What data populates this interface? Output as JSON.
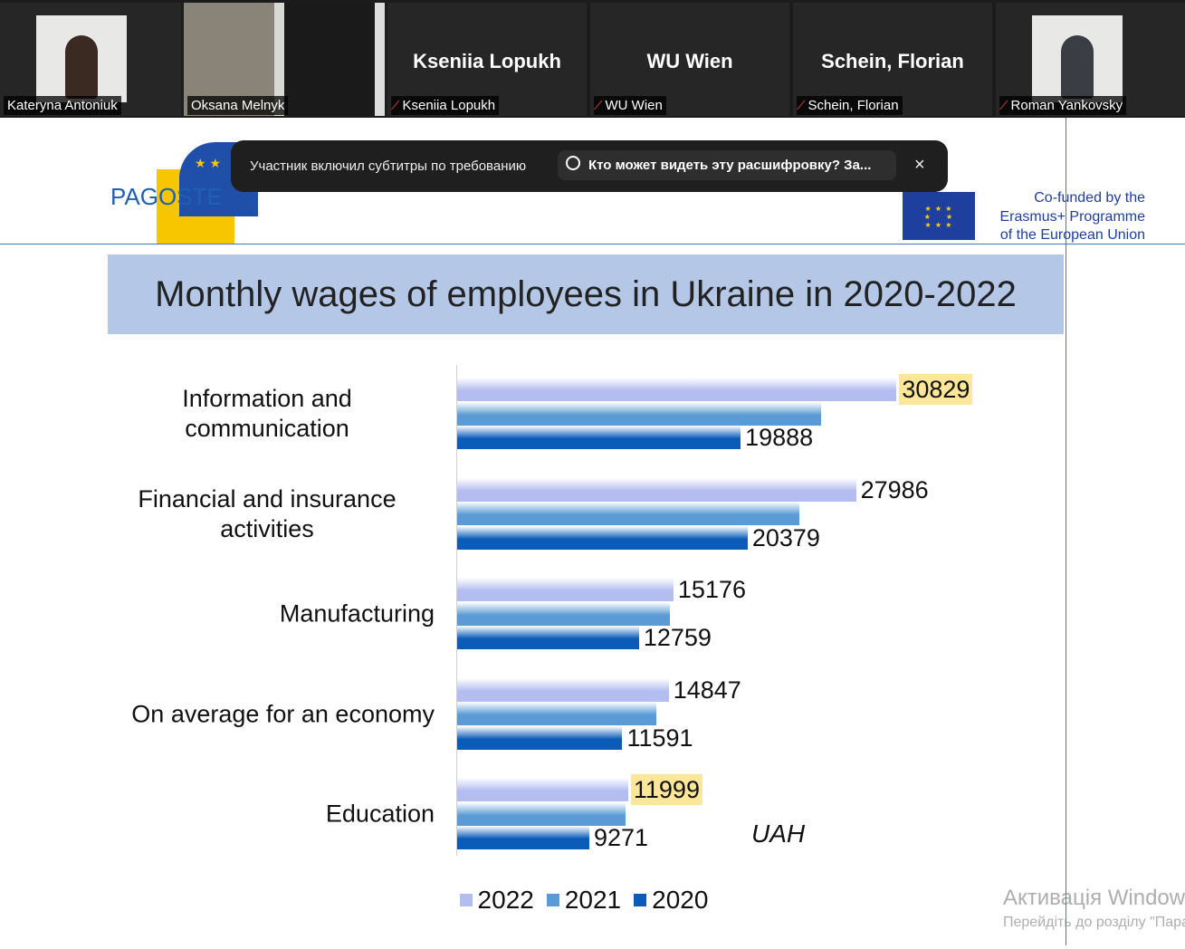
{
  "participants": [
    {
      "name": "Kateryna Antoniuk",
      "video": true,
      "muted": false
    },
    {
      "name": "Oksana Melnyk",
      "video": true,
      "muted": false
    },
    {
      "name": "Kseniia Lopukh",
      "display": "Kseniia Lopukh",
      "video": false,
      "muted": true
    },
    {
      "name": "WU Wien",
      "display": "WU Wien",
      "video": false,
      "muted": true
    },
    {
      "name": "Schein, Florian",
      "display": "Schein, Florian",
      "video": false,
      "muted": true
    },
    {
      "name": "Roman Yankovsky",
      "video": true,
      "muted": true
    }
  ],
  "caption_banner": {
    "message": "Участник включил субтитры по требованию",
    "button": "Кто может видеть эту расшифровку? За...",
    "close": "×"
  },
  "slide": {
    "logo": "PAGOSTE",
    "cofunded": [
      "Co-funded by the",
      "Erasmus+ Programme",
      "of the European Union"
    ]
  },
  "chart_data": {
    "type": "bar",
    "orientation": "horizontal",
    "title": "Monthly wages of employees in Ukraine in 2020-2022",
    "categories": [
      "Information and communication",
      "Financial and insurance activities",
      "Manufacturing",
      "On average for an economy",
      "Education"
    ],
    "series": [
      {
        "name": "2022",
        "color": "#b3bdf0",
        "values": [
          30829,
          27986,
          15176,
          14847,
          11999
        ],
        "highlighted": [
          true,
          false,
          false,
          false,
          true
        ]
      },
      {
        "name": "2021",
        "color": "#5b9bd5",
        "values": [
          25550,
          24000,
          14950,
          14000,
          11800
        ]
      },
      {
        "name": "2020",
        "color": "#0b5cb8",
        "values": [
          19888,
          20379,
          12759,
          11591,
          9271
        ]
      }
    ],
    "xlim": [
      0,
      35000
    ],
    "highlight_color": "#ffe699",
    "annotation": "UAH",
    "legend": "bottom"
  },
  "watermark": [
    "Активація Windows",
    "Перейдіть до розділу \"Параметри\""
  ]
}
